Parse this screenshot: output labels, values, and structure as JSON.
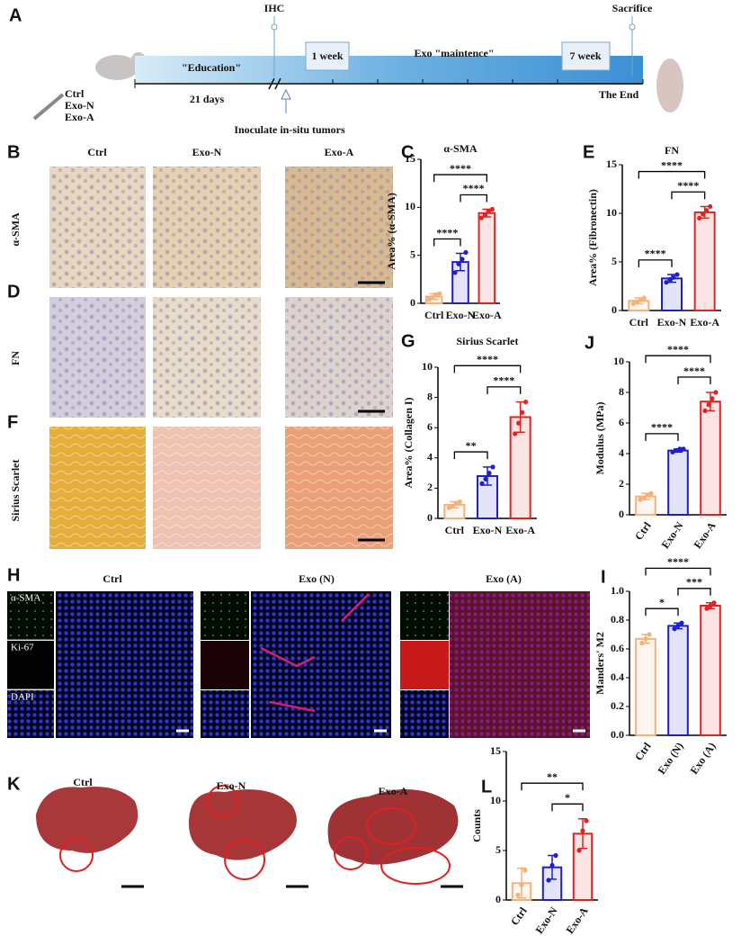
{
  "letters": [
    "A",
    "B",
    "C",
    "D",
    "E",
    "F",
    "G",
    "H",
    "I",
    "J",
    "K",
    "L"
  ],
  "timeline": {
    "groups": [
      "Ctrl",
      "Exo-N",
      "Exo-A"
    ],
    "ihc": "IHC",
    "sacrifice": "Sacrifice",
    "education": "\"Education\"",
    "days": "21 days",
    "week1": "1 week",
    "maintenance": "Exo \"maintence\"",
    "week7": "7 week",
    "end": "The End",
    "inoculate": "Inoculate in-situ tumors"
  },
  "ihc": {
    "columns": [
      "Ctrl",
      "Exo-N",
      "Exo-A"
    ],
    "rows": [
      "α-SMA",
      "FN",
      "Sirius Scarlet"
    ]
  },
  "fluorescence": {
    "columns": [
      "Ctrl",
      "Exo (N)",
      "Exo (A)"
    ],
    "channels": [
      "α-SMA",
      "Ki-67",
      "DAPI"
    ]
  },
  "liver": {
    "columns": [
      "Ctrl",
      "Exo-N",
      "Exo-A"
    ]
  },
  "chart_data": [
    {
      "type": "bar",
      "title": "α-SMA",
      "y_label": "Area% (α-SMA)",
      "categories": [
        "Ctrl",
        "Exo-N",
        "Exo-A"
      ],
      "colors": [
        "#f4b27a",
        "#1f1fc8",
        "#e02424"
      ],
      "values": [
        0.7,
        4.3,
        9.4
      ],
      "errors": [
        0.3,
        0.9,
        0.4
      ],
      "points": [
        [
          0.4,
          0.6,
          0.9,
          1.0
        ],
        [
          3.2,
          4.1,
          4.6,
          5.3
        ],
        [
          8.9,
          9.2,
          9.6,
          9.8
        ]
      ],
      "ylim": [
        0,
        15
      ],
      "yticks": [
        0,
        5,
        10,
        15
      ],
      "comparisons": [
        {
          "from": "Ctrl",
          "to": "Exo-N",
          "label": "****"
        },
        {
          "from": "Exo-N",
          "to": "Exo-A",
          "label": "****"
        },
        {
          "from": "Ctrl",
          "to": "Exo-A",
          "label": "****"
        }
      ]
    },
    {
      "type": "bar",
      "title": "FN",
      "y_label": "Area% (Fibronectin)",
      "categories": [
        "Ctrl",
        "Exo-N",
        "Exo-A"
      ],
      "colors": [
        "#f4b27a",
        "#1f1fc8",
        "#e02424"
      ],
      "values": [
        1.0,
        3.3,
        10.1
      ],
      "errors": [
        0.3,
        0.4,
        0.6
      ],
      "points": [
        [
          0.7,
          0.9,
          1.1,
          1.3
        ],
        [
          2.9,
          3.2,
          3.4,
          3.7
        ],
        [
          9.5,
          9.9,
          10.3,
          10.7
        ]
      ],
      "ylim": [
        0,
        15
      ],
      "yticks": [
        0,
        5,
        10,
        15
      ],
      "comparisons": [
        {
          "from": "Ctrl",
          "to": "Exo-N",
          "label": "****"
        },
        {
          "from": "Exo-N",
          "to": "Exo-A",
          "label": "****"
        },
        {
          "from": "Ctrl",
          "to": "Exo-A",
          "label": "****"
        }
      ]
    },
    {
      "type": "bar",
      "title": "Sirius Scarlet",
      "y_label": "Area% (Collagen I)",
      "categories": [
        "Ctrl",
        "Exo-N",
        "Exo-A"
      ],
      "colors": [
        "#f4b27a",
        "#1f1fc8",
        "#e02424"
      ],
      "values": [
        0.9,
        2.8,
        6.7
      ],
      "errors": [
        0.2,
        0.6,
        1.0
      ],
      "points": [
        [
          0.7,
          0.8,
          1.0,
          1.1
        ],
        [
          2.3,
          2.6,
          3.0,
          3.4
        ],
        [
          5.6,
          6.3,
          7.0,
          7.7
        ]
      ],
      "ylim": [
        0,
        10
      ],
      "yticks": [
        0,
        2,
        4,
        6,
        8,
        10
      ],
      "comparisons": [
        {
          "from": "Ctrl",
          "to": "Exo-N",
          "label": "**"
        },
        {
          "from": "Exo-N",
          "to": "Exo-A",
          "label": "****"
        },
        {
          "from": "Ctrl",
          "to": "Exo-A",
          "label": "****"
        }
      ]
    },
    {
      "type": "bar",
      "y_label": "Modulus (MPa)",
      "categories": [
        "Ctrl",
        "Exo-N",
        "Exo-A"
      ],
      "colors": [
        "#f4b27a",
        "#1f1fc8",
        "#e02424"
      ],
      "values": [
        1.2,
        4.2,
        7.4
      ],
      "errors": [
        0.2,
        0.1,
        0.6
      ],
      "points": [
        [
          1.0,
          1.1,
          1.3,
          1.4
        ],
        [
          4.1,
          4.2,
          4.3,
          4.3
        ],
        [
          6.8,
          7.2,
          7.6,
          8.0
        ]
      ],
      "ylim": [
        0,
        10
      ],
      "yticks": [
        0,
        2,
        4,
        6,
        8,
        10
      ],
      "comparisons": [
        {
          "from": "Ctrl",
          "to": "Exo-N",
          "label": "****"
        },
        {
          "from": "Exo-N",
          "to": "Exo-A",
          "label": "****"
        },
        {
          "from": "Ctrl",
          "to": "Exo-A",
          "label": "****"
        }
      ]
    },
    {
      "type": "bar",
      "y_label": "Manders' M2",
      "categories": [
        "Ctrl",
        "Exo (N)",
        "Exo (A)"
      ],
      "colors": [
        "#f4b27a",
        "#1f1fc8",
        "#e02424"
      ],
      "values": [
        0.67,
        0.76,
        0.9
      ],
      "errors": [
        0.03,
        0.02,
        0.02
      ],
      "points": [
        [
          0.64,
          0.67,
          0.7
        ],
        [
          0.74,
          0.76,
          0.78
        ],
        [
          0.88,
          0.9,
          0.92
        ]
      ],
      "ylim": [
        0,
        1
      ],
      "yticks": [
        {
          "value": 0,
          "label": "0.0"
        },
        0.2,
        0.4,
        0.6,
        0.8,
        {
          "value": 1,
          "label": "1.0"
        }
      ],
      "comparisons": [
        {
          "from": "Ctrl",
          "to": "Exo (N)",
          "label": "*"
        },
        {
          "from": "Exo (N)",
          "to": "Exo (A)",
          "label": "***"
        },
        {
          "from": "Ctrl",
          "to": "Exo (A)",
          "label": "****"
        }
      ]
    },
    {
      "type": "bar",
      "y_label": "Counts",
      "categories": [
        "Ctrl",
        "Exo-N",
        "Exo-A"
      ],
      "colors": [
        "#f4b27a",
        "#1f1fc8",
        "#e02424"
      ],
      "values": [
        1.7,
        3.3,
        6.7
      ],
      "errors": [
        1.5,
        1.2,
        1.5
      ],
      "points": [
        [
          0.5,
          1.5,
          3.0
        ],
        [
          2.0,
          3.5,
          4.5
        ],
        [
          5.0,
          7.0,
          8.0
        ]
      ],
      "ylim": [
        0,
        15
      ],
      "yticks": [
        0,
        5,
        10,
        15
      ],
      "comparisons": [
        {
          "from": "Exo-N",
          "to": "Exo-A",
          "label": "*"
        },
        {
          "from": "Ctrl",
          "to": "Exo-A",
          "label": "**"
        }
      ]
    }
  ]
}
